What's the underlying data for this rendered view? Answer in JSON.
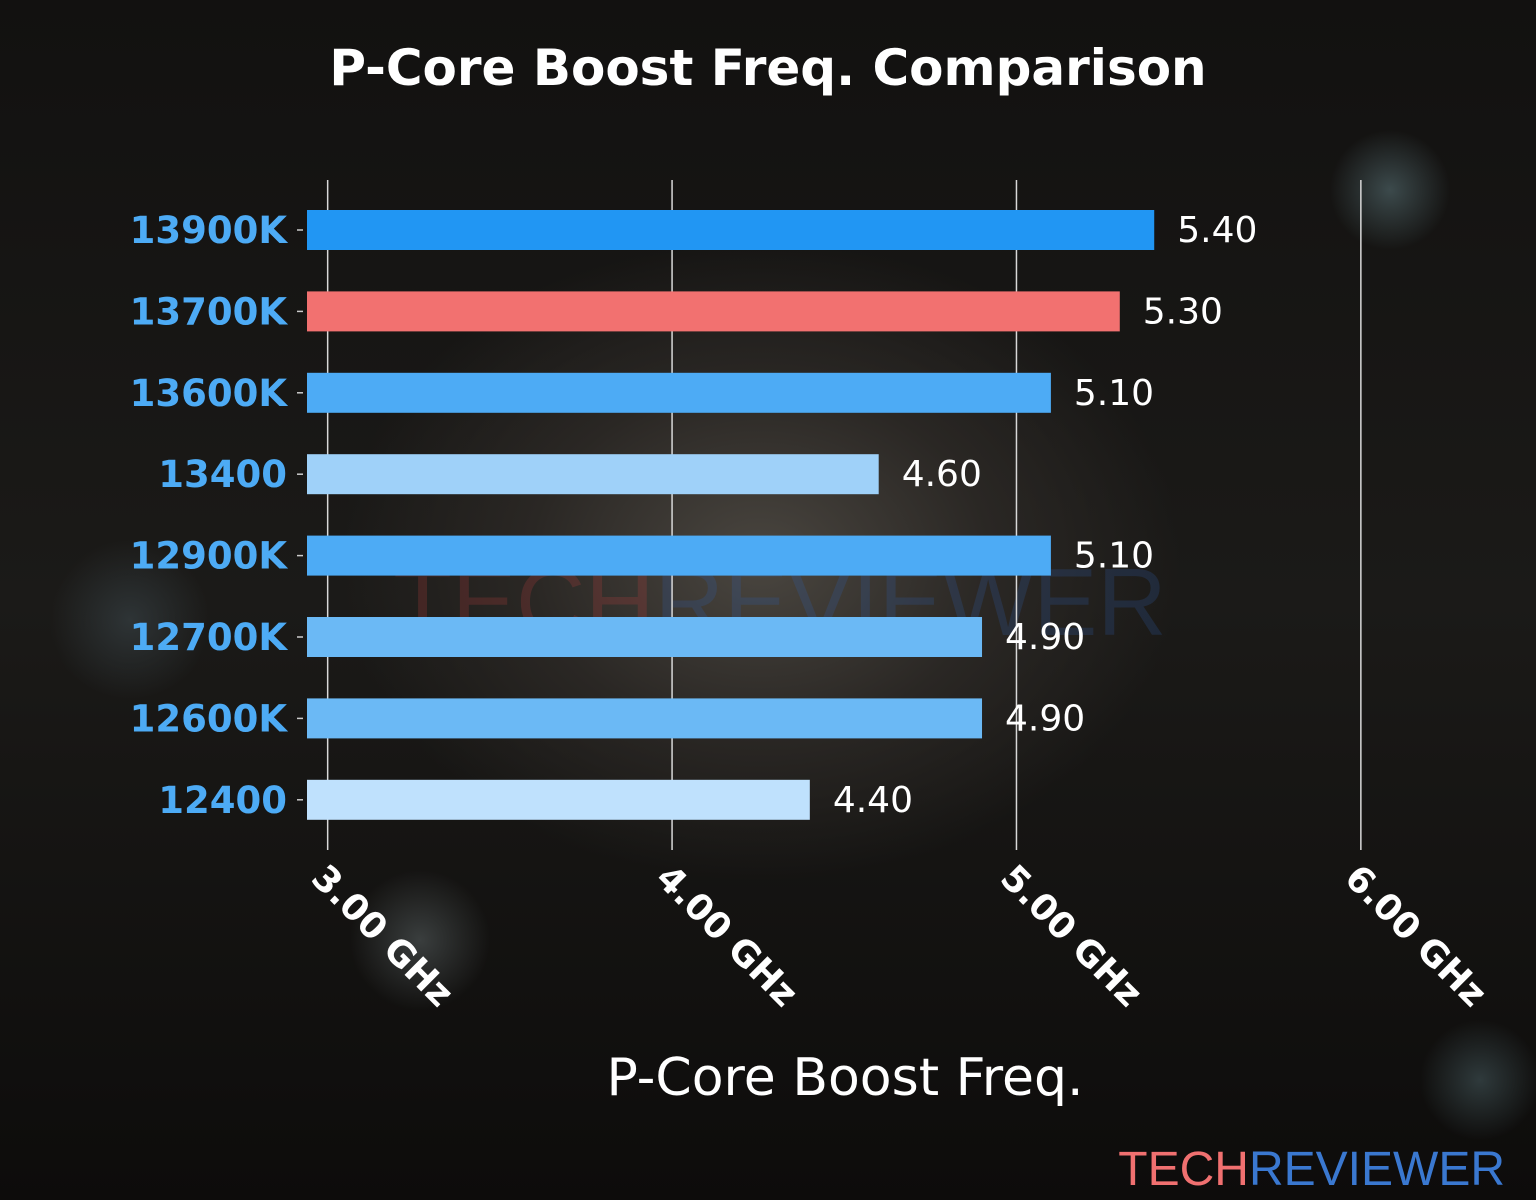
{
  "chart_data": {
    "type": "bar",
    "orientation": "horizontal",
    "title": "P-Core Boost Freq. Comparison",
    "xlabel": "P-Core Boost Freq.",
    "ylabel": "",
    "categories": [
      "13900K",
      "13700K",
      "13600K",
      "13400",
      "12900K",
      "12700K",
      "12600K",
      "12400"
    ],
    "values": [
      5.4,
      5.3,
      5.1,
      4.6,
      5.1,
      4.9,
      4.9,
      4.4
    ],
    "value_labels": [
      "5.40",
      "5.30",
      "5.10",
      "4.60",
      "5.10",
      "4.90",
      "4.90",
      "4.40"
    ],
    "bar_colors": [
      "#2196f3",
      "#f27170",
      "#4dabf5",
      "#9fd1f9",
      "#4dabf5",
      "#6bb9f5",
      "#6bb9f5",
      "#bfe1fd"
    ],
    "xlim": [
      2.94,
      6.0
    ],
    "xticks": [
      3,
      4,
      5,
      6
    ],
    "xtick_labels": [
      "3.00 GHz",
      "4.00 GHz",
      "5.00 GHz",
      "6.00 GHz"
    ],
    "grid": "vertical",
    "category_label_color": "#4dabf5"
  },
  "watermark": {
    "part1": "TECH",
    "part2": "REVIEWER",
    "color1": "#f07070",
    "color2": "#3a78d0"
  }
}
